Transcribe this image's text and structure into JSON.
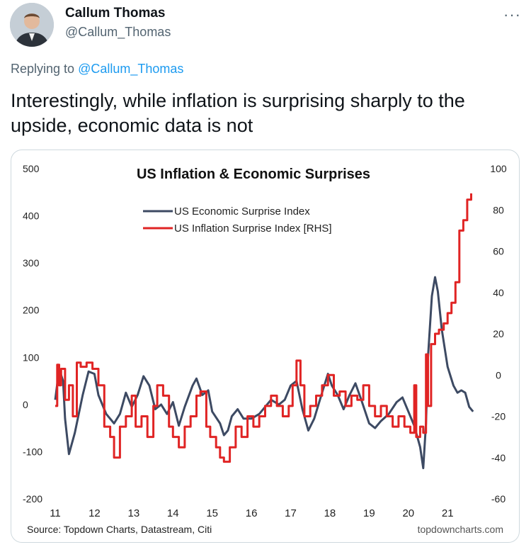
{
  "tweet": {
    "author_name": "Callum Thomas",
    "author_handle": "@Callum_Thomas",
    "more_icon": "more-horizontal-icon",
    "reply_prefix": "Replying to ",
    "reply_to": "@Callum_Thomas",
    "text": "Interestingly, while inflation is surprising sharply to the upside, economic data is not"
  },
  "chart_data": {
    "type": "line",
    "title": "US Inflation & Economic Surprises",
    "source": "Source: Topdown Charts, Datastream, Citi",
    "watermark": "topdowncharts.com",
    "x_ticks": [
      "11",
      "12",
      "13",
      "14",
      "15",
      "16",
      "17",
      "18",
      "19",
      "20",
      "21"
    ],
    "xlim": [
      2011.0,
      2021.7
    ],
    "left_axis": {
      "ticks": [
        "500",
        "400",
        "300",
        "200",
        "100",
        "0",
        "-100",
        "-200"
      ],
      "ylim": [
        -200,
        500
      ]
    },
    "right_axis": {
      "ticks": [
        "100",
        "80",
        "60",
        "40",
        "20",
        "0",
        "-20",
        "-40",
        "-60"
      ],
      "ylim": [
        -60,
        100
      ]
    },
    "legend": "top-center",
    "series": [
      {
        "name": "US Economic Surprise Index",
        "axis": "left",
        "color": "#3d4a63",
        "points": [
          [
            2011.0,
            10
          ],
          [
            2011.1,
            75
          ],
          [
            2011.2,
            50
          ],
          [
            2011.25,
            -30
          ],
          [
            2011.35,
            -105
          ],
          [
            2011.5,
            -60
          ],
          [
            2011.7,
            20
          ],
          [
            2011.85,
            70
          ],
          [
            2012.0,
            65
          ],
          [
            2012.1,
            20
          ],
          [
            2012.3,
            -20
          ],
          [
            2012.5,
            -40
          ],
          [
            2012.65,
            -20
          ],
          [
            2012.8,
            25
          ],
          [
            2012.95,
            -5
          ],
          [
            2013.1,
            20
          ],
          [
            2013.25,
            60
          ],
          [
            2013.4,
            40
          ],
          [
            2013.55,
            -10
          ],
          [
            2013.7,
            0
          ],
          [
            2013.85,
            -20
          ],
          [
            2014.0,
            5
          ],
          [
            2014.15,
            -45
          ],
          [
            2014.3,
            -5
          ],
          [
            2014.5,
            40
          ],
          [
            2014.6,
            55
          ],
          [
            2014.75,
            20
          ],
          [
            2014.9,
            30
          ],
          [
            2015.0,
            -15
          ],
          [
            2015.2,
            -40
          ],
          [
            2015.3,
            -65
          ],
          [
            2015.4,
            -55
          ],
          [
            2015.5,
            -25
          ],
          [
            2015.65,
            -10
          ],
          [
            2015.8,
            -30
          ],
          [
            2016.0,
            -30
          ],
          [
            2016.2,
            -20
          ],
          [
            2016.35,
            -5
          ],
          [
            2016.5,
            10
          ],
          [
            2016.7,
            0
          ],
          [
            2016.85,
            10
          ],
          [
            2017.0,
            40
          ],
          [
            2017.15,
            50
          ],
          [
            2017.3,
            -10
          ],
          [
            2017.45,
            -55
          ],
          [
            2017.6,
            -30
          ],
          [
            2017.8,
            25
          ],
          [
            2017.95,
            65
          ],
          [
            2018.05,
            40
          ],
          [
            2018.2,
            20
          ],
          [
            2018.35,
            -10
          ],
          [
            2018.5,
            20
          ],
          [
            2018.65,
            45
          ],
          [
            2018.8,
            10
          ],
          [
            2019.0,
            -40
          ],
          [
            2019.15,
            -50
          ],
          [
            2019.3,
            -35
          ],
          [
            2019.5,
            -20
          ],
          [
            2019.7,
            5
          ],
          [
            2019.85,
            15
          ],
          [
            2020.0,
            -15
          ],
          [
            2020.15,
            -45
          ],
          [
            2020.3,
            -90
          ],
          [
            2020.38,
            -135
          ],
          [
            2020.45,
            -40
          ],
          [
            2020.5,
            100
          ],
          [
            2020.6,
            230
          ],
          [
            2020.68,
            270
          ],
          [
            2020.75,
            240
          ],
          [
            2020.85,
            160
          ],
          [
            2021.0,
            80
          ],
          [
            2021.15,
            40
          ],
          [
            2021.25,
            25
          ],
          [
            2021.35,
            30
          ],
          [
            2021.45,
            25
          ],
          [
            2021.55,
            -5
          ],
          [
            2021.65,
            -15
          ]
        ]
      },
      {
        "name": "US Inflation Surprise Index [RHS]",
        "axis": "right",
        "color": "#e02424",
        "points": [
          [
            2011.0,
            -15
          ],
          [
            2011.05,
            5
          ],
          [
            2011.1,
            -5
          ],
          [
            2011.15,
            3
          ],
          [
            2011.25,
            -12
          ],
          [
            2011.35,
            -5
          ],
          [
            2011.45,
            -20
          ],
          [
            2011.55,
            6
          ],
          [
            2011.65,
            4
          ],
          [
            2011.8,
            6
          ],
          [
            2011.95,
            3
          ],
          [
            2012.1,
            -5
          ],
          [
            2012.25,
            -25
          ],
          [
            2012.4,
            -30
          ],
          [
            2012.5,
            -40
          ],
          [
            2012.65,
            -25
          ],
          [
            2012.8,
            -20
          ],
          [
            2012.95,
            -10
          ],
          [
            2013.05,
            -25
          ],
          [
            2013.2,
            -20
          ],
          [
            2013.35,
            -30
          ],
          [
            2013.5,
            -15
          ],
          [
            2013.6,
            -5
          ],
          [
            2013.75,
            -10
          ],
          [
            2013.9,
            -25
          ],
          [
            2014.0,
            -30
          ],
          [
            2014.15,
            -35
          ],
          [
            2014.3,
            -25
          ],
          [
            2014.45,
            -20
          ],
          [
            2014.6,
            -10
          ],
          [
            2014.7,
            -8
          ],
          [
            2014.85,
            -25
          ],
          [
            2014.95,
            -30
          ],
          [
            2015.1,
            -35
          ],
          [
            2015.2,
            -40
          ],
          [
            2015.3,
            -42
          ],
          [
            2015.45,
            -35
          ],
          [
            2015.6,
            -25
          ],
          [
            2015.75,
            -30
          ],
          [
            2015.9,
            -20
          ],
          [
            2016.05,
            -25
          ],
          [
            2016.2,
            -20
          ],
          [
            2016.35,
            -15
          ],
          [
            2016.5,
            -10
          ],
          [
            2016.65,
            -15
          ],
          [
            2016.8,
            -20
          ],
          [
            2016.95,
            -15
          ],
          [
            2017.05,
            -5
          ],
          [
            2017.15,
            7
          ],
          [
            2017.25,
            -5
          ],
          [
            2017.35,
            -20
          ],
          [
            2017.5,
            -15
          ],
          [
            2017.65,
            -10
          ],
          [
            2017.8,
            -5
          ],
          [
            2017.95,
            0
          ],
          [
            2018.1,
            -10
          ],
          [
            2018.25,
            -8
          ],
          [
            2018.4,
            -15
          ],
          [
            2018.55,
            -10
          ],
          [
            2018.7,
            -12
          ],
          [
            2018.85,
            -5
          ],
          [
            2019.0,
            -15
          ],
          [
            2019.15,
            -20
          ],
          [
            2019.3,
            -15
          ],
          [
            2019.45,
            -20
          ],
          [
            2019.6,
            -25
          ],
          [
            2019.75,
            -20
          ],
          [
            2019.9,
            -25
          ],
          [
            2020.05,
            -28
          ],
          [
            2020.15,
            -5
          ],
          [
            2020.2,
            -30
          ],
          [
            2020.3,
            -25
          ],
          [
            2020.38,
            -28
          ],
          [
            2020.45,
            10
          ],
          [
            2020.5,
            -15
          ],
          [
            2020.58,
            15
          ],
          [
            2020.68,
            20
          ],
          [
            2020.78,
            22
          ],
          [
            2020.9,
            25
          ],
          [
            2021.0,
            30
          ],
          [
            2021.1,
            35
          ],
          [
            2021.2,
            45
          ],
          [
            2021.3,
            70
          ],
          [
            2021.4,
            75
          ],
          [
            2021.5,
            85
          ],
          [
            2021.6,
            88
          ]
        ]
      }
    ]
  }
}
